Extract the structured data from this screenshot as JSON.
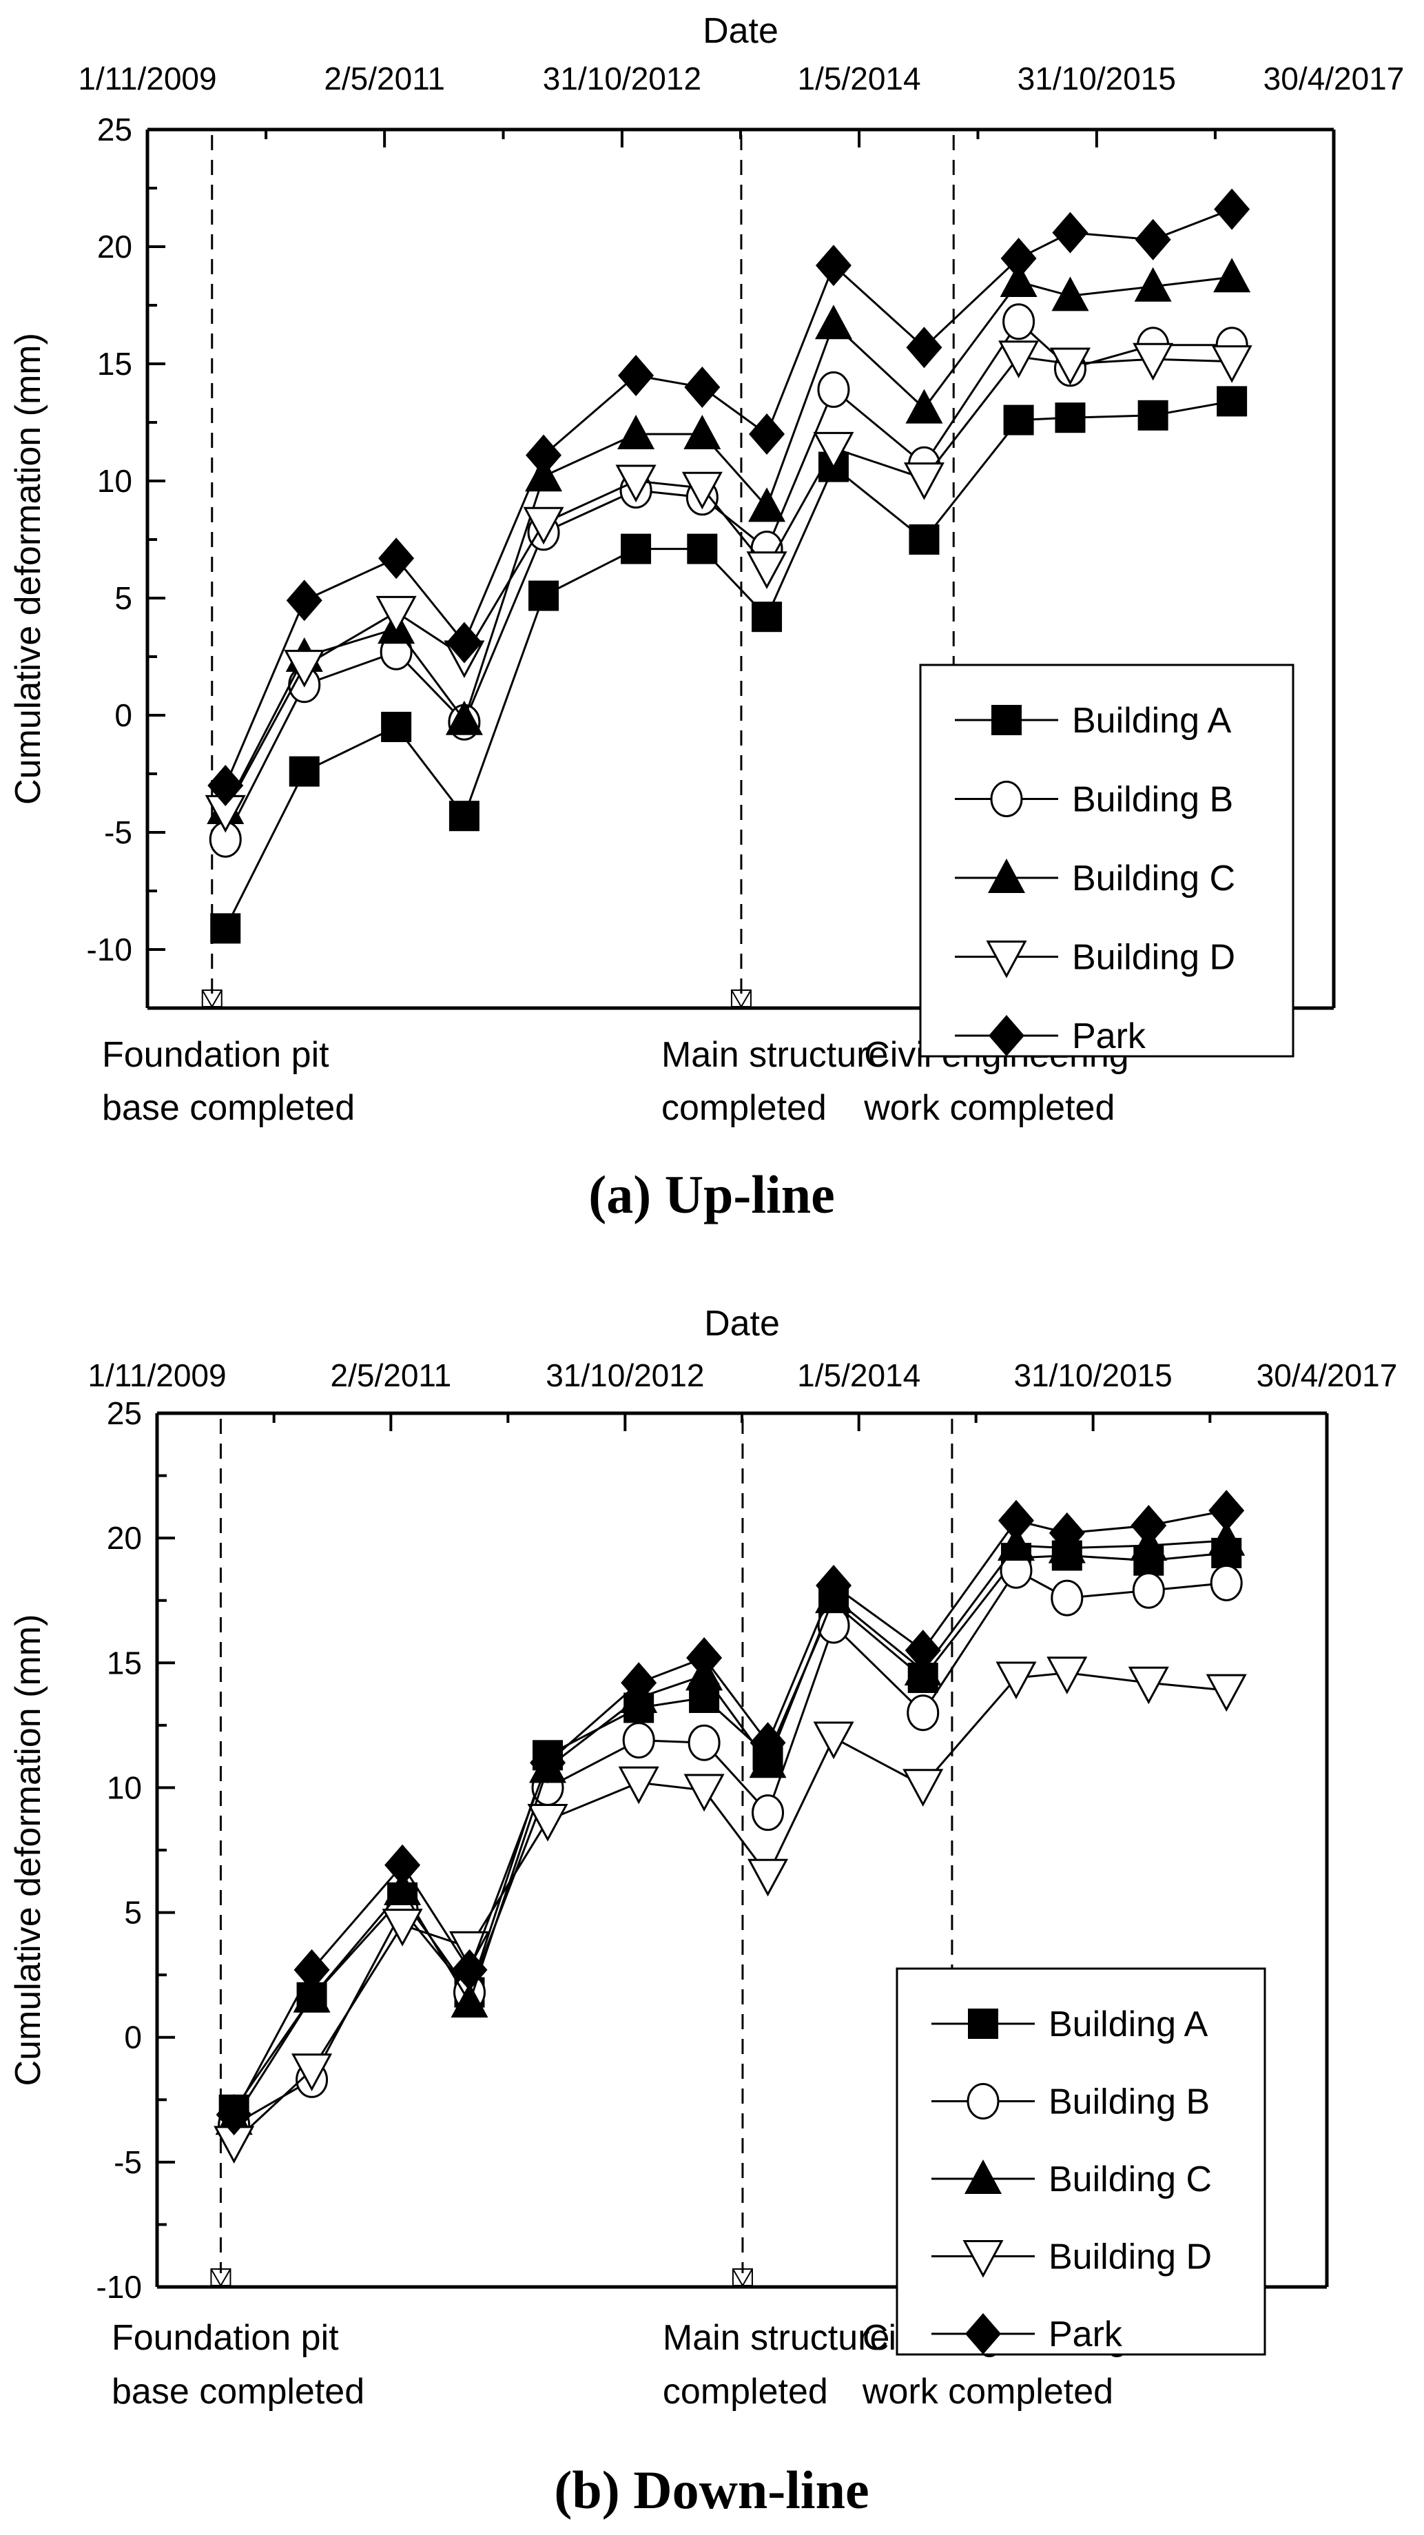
{
  "chart_data": [
    {
      "type": "line",
      "title": "(a) Up-line",
      "xlabel": "Date",
      "ylabel": "Cumulative deformation (mm)",
      "x_tick_labels": [
        "1/11/2009",
        "2/5/2011",
        "31/10/2012",
        "1/5/2014",
        "31/10/2015",
        "30/4/2017"
      ],
      "xlim": [
        "2009-11-01",
        "2017-04-30"
      ],
      "ylim": [
        -12.5,
        25
      ],
      "y_ticks": [
        -10,
        -5,
        0,
        5,
        10,
        15,
        20,
        25
      ],
      "grid": false,
      "legend_position": "bottom-right",
      "x": [
        "2010-04-30",
        "2010-10-29",
        "2011-05-29",
        "2011-11-02",
        "2012-05-03",
        "2012-12-02",
        "2013-05-04",
        "2013-09-30",
        "2014-03-03",
        "2014-09-28",
        "2015-05-04",
        "2015-08-31",
        "2016-03-09",
        "2016-09-07"
      ],
      "series": [
        {
          "name": "Building A",
          "marker": "square-filled",
          "values": [
            -9.1,
            -2.4,
            -0.5,
            -4.3,
            5.1,
            7.1,
            7.1,
            4.2,
            10.6,
            7.5,
            12.6,
            12.7,
            12.8,
            13.4
          ]
        },
        {
          "name": "Building B",
          "marker": "circle-open",
          "values": [
            -5.3,
            1.3,
            2.7,
            -0.3,
            7.8,
            9.6,
            9.3,
            7.1,
            13.9,
            10.7,
            16.8,
            14.8,
            15.8,
            15.8
          ]
        },
        {
          "name": "Building C",
          "marker": "triangle-up-filled",
          "values": [
            -4.0,
            2.5,
            3.7,
            -0.2,
            10.2,
            12.0,
            12.0,
            8.9,
            16.7,
            13.1,
            18.5,
            17.9,
            18.3,
            18.7
          ]
        },
        {
          "name": "Building D",
          "marker": "triangle-down-open",
          "values": [
            -4.1,
            2.1,
            4.4,
            2.5,
            8.2,
            10.0,
            9.7,
            6.3,
            11.4,
            10.1,
            15.3,
            15.0,
            15.2,
            15.1
          ]
        },
        {
          "name": "Park",
          "marker": "diamond-filled",
          "values": [
            -3.0,
            4.9,
            6.7,
            3.1,
            11.1,
            14.5,
            14.0,
            12.0,
            19.2,
            15.7,
            19.5,
            20.6,
            20.3,
            21.6
          ]
        }
      ],
      "milestones": [
        {
          "date": "2010-03-30",
          "label_line1": "Foundation pit",
          "label_line2": "base completed"
        },
        {
          "date": "2013-08-02",
          "label_line1": "Main structure",
          "label_line2": "completed"
        },
        {
          "date": "2014-12-05",
          "label_line1": "Civil engineering",
          "label_line2": "work completed"
        }
      ]
    },
    {
      "type": "line",
      "title": "(b) Down-line",
      "xlabel": "Date",
      "ylabel": "Cumulative deformation (mm)",
      "x_tick_labels": [
        "1/11/2009",
        "2/5/2011",
        "31/10/2012",
        "1/5/2014",
        "31/10/2015",
        "30/4/2017"
      ],
      "xlim": [
        "2009-11-01",
        "2017-04-30"
      ],
      "ylim": [
        -10,
        25
      ],
      "y_ticks": [
        -10,
        -5,
        0,
        5,
        10,
        15,
        20,
        25
      ],
      "grid": false,
      "legend_position": "bottom-right",
      "x": [
        "2010-04-30",
        "2010-10-29",
        "2011-05-29",
        "2011-11-02",
        "2012-05-03",
        "2012-12-02",
        "2013-05-04",
        "2013-09-30",
        "2014-03-03",
        "2014-09-28",
        "2015-05-04",
        "2015-08-31",
        "2016-03-09",
        "2016-09-07"
      ],
      "series": [
        {
          "name": "Building A",
          "marker": "square-filled",
          "values": [
            -2.9,
            1.6,
            5.6,
            1.8,
            11.3,
            13.2,
            13.6,
            11.3,
            17.4,
            14.4,
            19.2,
            19.3,
            19.1,
            19.4
          ]
        },
        {
          "name": "Building B",
          "marker": "circle-open",
          "values": [
            -3.5,
            -1.7,
            5.1,
            1.8,
            10.0,
            11.9,
            11.8,
            9.0,
            16.5,
            13.0,
            18.7,
            17.6,
            17.9,
            18.2
          ]
        },
        {
          "name": "Building C",
          "marker": "triangle-up-filled",
          "values": [
            -3.3,
            1.6,
            5.9,
            1.4,
            10.8,
            13.6,
            14.5,
            11.0,
            17.6,
            14.7,
            19.7,
            19.6,
            19.7,
            19.9
          ]
        },
        {
          "name": "Building D",
          "marker": "triangle-down-open",
          "values": [
            -4.2,
            -1.3,
            4.5,
            3.6,
            8.7,
            10.2,
            9.9,
            6.5,
            12.0,
            10.1,
            14.4,
            14.6,
            14.2,
            13.9
          ]
        },
        {
          "name": "Park",
          "marker": "diamond-filled",
          "values": [
            -3.1,
            2.7,
            6.9,
            2.7,
            11.0,
            14.2,
            15.2,
            11.8,
            18.1,
            15.5,
            20.7,
            20.2,
            20.5,
            21.1
          ]
        }
      ],
      "milestones": [
        {
          "date": "2010-03-30",
          "label_line1": "Foundation pit",
          "label_line2": "base completed"
        },
        {
          "date": "2013-08-02",
          "label_line1": "Main structure",
          "label_line2": "completed"
        },
        {
          "date": "2014-12-05",
          "label_line1": "Civil engineering",
          "label_line2": "work completed"
        }
      ]
    }
  ]
}
